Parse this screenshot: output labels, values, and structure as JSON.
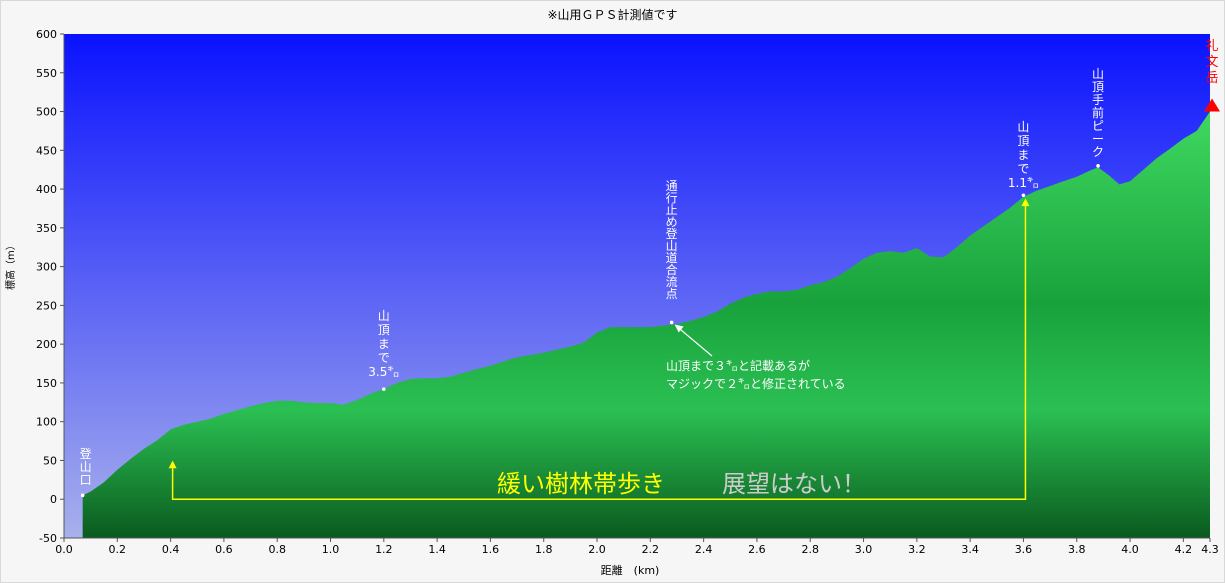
{
  "chart_data": {
    "type": "area",
    "title": "※山用ＧＰＳ計測値です",
    "xlabel": "距離　(km)",
    "ylabel": "標高（m）",
    "xlim": [
      0,
      4.3
    ],
    "ylim": [
      -50,
      600
    ],
    "x_ticks": [
      "0.0",
      "0.2",
      "0.4",
      "0.6",
      "0.8",
      "1.0",
      "1.2",
      "1.4",
      "1.6",
      "1.8",
      "2.0",
      "2.2",
      "2.4",
      "2.6",
      "2.8",
      "3.0",
      "3.2",
      "3.4",
      "3.6",
      "3.8",
      "4.0",
      "4.2",
      "4.3"
    ],
    "y_ticks": [
      "600",
      "550",
      "500",
      "450",
      "400",
      "350",
      "300",
      "250",
      "200",
      "150",
      "100",
      "50",
      "0",
      "-50"
    ],
    "grid": false,
    "series": [
      {
        "x": [
          0.07,
          0.1,
          0.15,
          0.2,
          0.25,
          0.3,
          0.35,
          0.4,
          0.45,
          0.5,
          0.55,
          0.6,
          0.65,
          0.7,
          0.75,
          0.8,
          0.85,
          0.9,
          0.95,
          1.0,
          1.05,
          1.1,
          1.15,
          1.2,
          1.25,
          1.3,
          1.35,
          1.4,
          1.45,
          1.5,
          1.55,
          1.6,
          1.65,
          1.7,
          1.75,
          1.8,
          1.85,
          1.9,
          1.95,
          2.0,
          2.05,
          2.1,
          2.15,
          2.2,
          2.25,
          2.3,
          2.35,
          2.4,
          2.45,
          2.5,
          2.55,
          2.6,
          2.65,
          2.7,
          2.75,
          2.8,
          2.85,
          2.9,
          2.95,
          3.0,
          3.05,
          3.1,
          3.15,
          3.2,
          3.25,
          3.3,
          3.35,
          3.4,
          3.45,
          3.5,
          3.55,
          3.6,
          3.65,
          3.7,
          3.75,
          3.8,
          3.85,
          3.88,
          3.92,
          3.96,
          4.0,
          4.05,
          4.1,
          4.15,
          4.2,
          4.25,
          4.3
        ],
        "y": [
          5,
          10,
          22,
          38,
          52,
          65,
          76,
          90,
          96,
          100,
          104,
          110,
          115,
          120,
          124,
          127,
          127,
          125,
          124,
          124,
          122,
          128,
          136,
          142,
          150,
          155,
          156,
          156,
          158,
          163,
          168,
          172,
          178,
          183,
          186,
          189,
          193,
          197,
          202,
          215,
          222,
          222,
          222,
          222,
          224,
          226,
          230,
          235,
          242,
          252,
          260,
          265,
          268,
          268,
          270,
          276,
          280,
          287,
          298,
          310,
          318,
          320,
          318,
          324,
          313,
          312,
          325,
          340,
          352,
          364,
          376,
          390,
          398,
          404,
          410,
          416,
          424,
          428,
          418,
          406,
          410,
          425,
          440,
          452,
          465,
          475,
          500
        ]
      }
    ],
    "annotations": [
      {
        "text": "登山口",
        "x": 0.07,
        "y": 5
      },
      {
        "text": "山頂まで3.5㌔",
        "x": 1.2,
        "y": 142
      },
      {
        "text": "通行止め登山道合流点",
        "x": 2.28,
        "y": 228
      },
      {
        "text": "山頂まで1.1㌔",
        "x": 3.6,
        "y": 392
      },
      {
        "text": "山頂手前ピーク",
        "x": 3.88,
        "y": 430
      },
      {
        "text": "礼文岳",
        "x": 4.3,
        "y": 500
      },
      {
        "text": "山頂まで３㌔と記載あるが",
        "x": 2.28,
        "y": 172
      },
      {
        "text": "マジックで２㌔と修正されている",
        "x": 2.28,
        "y": 148
      },
      {
        "text": "緩い樹林帯歩き",
        "x": 0.4,
        "y": 22
      },
      {
        "text": "展望はない！",
        "x": 3.6,
        "y": 22
      }
    ],
    "colors": {
      "sky_top": "#0a12ff",
      "sky_bottom": "#a8b0ec",
      "terrain_light": "#2fcf57",
      "terrain_dark": "#0d5f22",
      "bracket": "#ffff00",
      "summit_marker": "#ff0000",
      "note_yellow": "#ffff00",
      "note_grey": "#cccccc"
    }
  }
}
